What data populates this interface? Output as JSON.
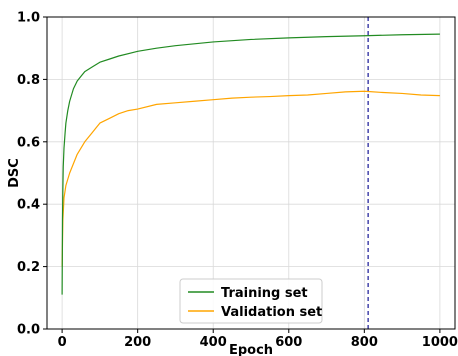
{
  "chart_data": {
    "type": "line",
    "xlabel": "Epoch",
    "ylabel": "DSC",
    "xlim": [
      -40,
      1040
    ],
    "ylim": [
      0.0,
      1.0
    ],
    "xticks": [
      0,
      200,
      400,
      600,
      800,
      1000
    ],
    "yticks": [
      0.0,
      0.2,
      0.4,
      0.6,
      0.8,
      1.0
    ],
    "xtick_labels": [
      "0",
      "200",
      "400",
      "600",
      "800",
      "1000"
    ],
    "ytick_labels": [
      "0.0",
      "0.2",
      "0.4",
      "0.6",
      "0.8",
      "1.0"
    ],
    "grid": true,
    "legend_position": "bottom-center",
    "vline": {
      "x": 810,
      "color": "#00008b",
      "style": "dashed"
    },
    "series": [
      {
        "name": "Training set",
        "color": "#228b22",
        "x": [
          0,
          1,
          2,
          3,
          5,
          8,
          10,
          15,
          20,
          30,
          40,
          50,
          60,
          80,
          100,
          125,
          150,
          200,
          250,
          300,
          400,
          500,
          600,
          700,
          800,
          900,
          1000
        ],
        "y": [
          0.11,
          0.35,
          0.45,
          0.52,
          0.58,
          0.63,
          0.66,
          0.7,
          0.73,
          0.77,
          0.795,
          0.81,
          0.825,
          0.84,
          0.855,
          0.865,
          0.875,
          0.89,
          0.9,
          0.908,
          0.92,
          0.928,
          0.933,
          0.937,
          0.94,
          0.943,
          0.945
        ]
      },
      {
        "name": "Validation set",
        "color": "#ffa500",
        "x": [
          0,
          2,
          5,
          10,
          15,
          20,
          30,
          40,
          50,
          60,
          80,
          100,
          125,
          150,
          175,
          200,
          250,
          300,
          350,
          400,
          450,
          500,
          550,
          600,
          650,
          700,
          750,
          800,
          850,
          900,
          950,
          1000
        ],
        "y": [
          0.2,
          0.35,
          0.42,
          0.46,
          0.48,
          0.5,
          0.53,
          0.56,
          0.58,
          0.6,
          0.63,
          0.66,
          0.675,
          0.69,
          0.7,
          0.705,
          0.72,
          0.725,
          0.73,
          0.735,
          0.74,
          0.743,
          0.745,
          0.748,
          0.75,
          0.755,
          0.76,
          0.762,
          0.758,
          0.755,
          0.75,
          0.748
        ]
      }
    ]
  }
}
